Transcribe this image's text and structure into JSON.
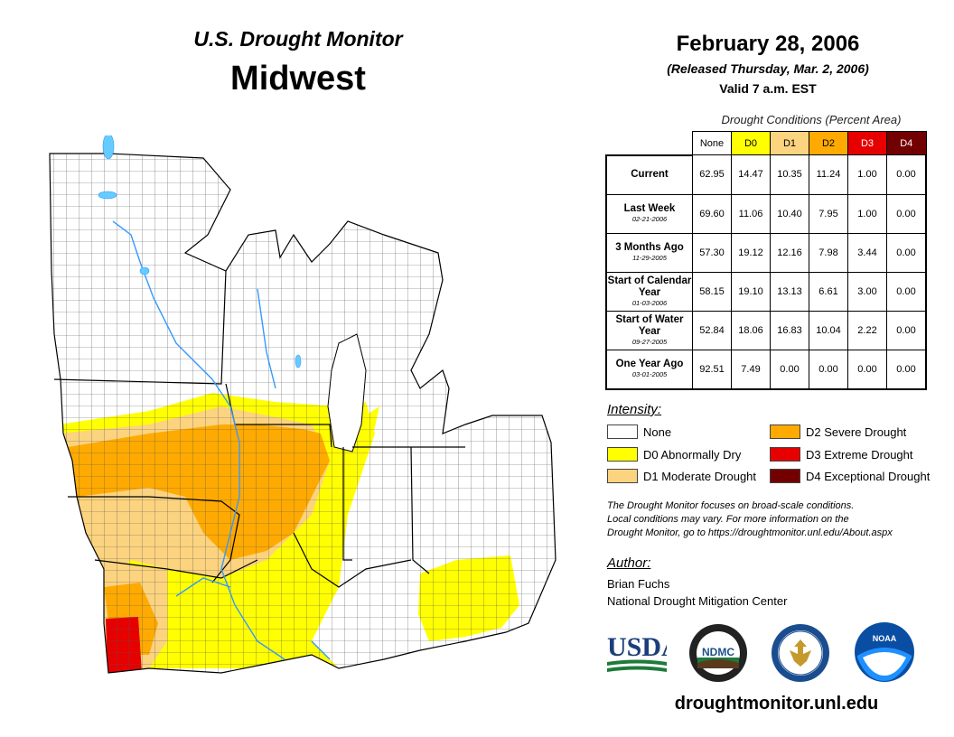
{
  "header": {
    "subtitle": "U.S. Drought Monitor",
    "region": "Midwest",
    "date": "February 28, 2006",
    "released": "(Released Thursday, Mar. 2, 2006)",
    "valid": "Valid 7 a.m. EST"
  },
  "conditions": {
    "title": "Drought Conditions (Percent Area)",
    "columns": [
      "None",
      "D0",
      "D1",
      "D2",
      "D3",
      "D4"
    ],
    "column_colors": [
      "#ffffff",
      "#ffff00",
      "#fcd37f",
      "#ffaa00",
      "#e60000",
      "#730000"
    ],
    "rows": [
      {
        "label": "Current",
        "date": "",
        "values": [
          "62.95",
          "14.47",
          "10.35",
          "11.24",
          "1.00",
          "0.00"
        ]
      },
      {
        "label": "Last Week",
        "date": "02-21-2006",
        "values": [
          "69.60",
          "11.06",
          "10.40",
          "7.95",
          "1.00",
          "0.00"
        ]
      },
      {
        "label": "3 Months Ago",
        "date": "11-29-2005",
        "values": [
          "57.30",
          "19.12",
          "12.16",
          "7.98",
          "3.44",
          "0.00"
        ]
      },
      {
        "label": "Start of Calendar Year",
        "date": "01-03-2006",
        "values": [
          "58.15",
          "19.10",
          "13.13",
          "6.61",
          "3.00",
          "0.00"
        ]
      },
      {
        "label": "Start of Water Year",
        "date": "09-27-2005",
        "values": [
          "52.84",
          "18.06",
          "16.83",
          "10.04",
          "2.22",
          "0.00"
        ]
      },
      {
        "label": "One Year Ago",
        "date": "03-01-2005",
        "values": [
          "92.51",
          "7.49",
          "0.00",
          "0.00",
          "0.00",
          "0.00"
        ]
      }
    ]
  },
  "legend": {
    "title": "Intensity:",
    "items": [
      {
        "label": "None",
        "color": "#ffffff"
      },
      {
        "label": "D0 Abnormally Dry",
        "color": "#ffff00"
      },
      {
        "label": "D1 Moderate Drought",
        "color": "#fcd37f"
      },
      {
        "label": "D2 Severe Drought",
        "color": "#ffaa00"
      },
      {
        "label": "D3 Extreme Drought",
        "color": "#e60000"
      },
      {
        "label": "D4 Exceptional Drought",
        "color": "#730000"
      }
    ]
  },
  "note": {
    "line1": "The Drought Monitor focuses on broad-scale conditions.",
    "line2": "Local conditions may vary. For more information on the",
    "line3": "Drought Monitor, go to https://droughtmonitor.unl.edu/About.aspx"
  },
  "author": {
    "heading": "Author:",
    "name": "Brian Fuchs",
    "org": "National Drought Mitigation Center"
  },
  "logos": {
    "usda": "USDA",
    "ndmc": "NDMC",
    "noaa": "NOAA"
  },
  "footer_url": "droughtmonitor.unl.edu"
}
